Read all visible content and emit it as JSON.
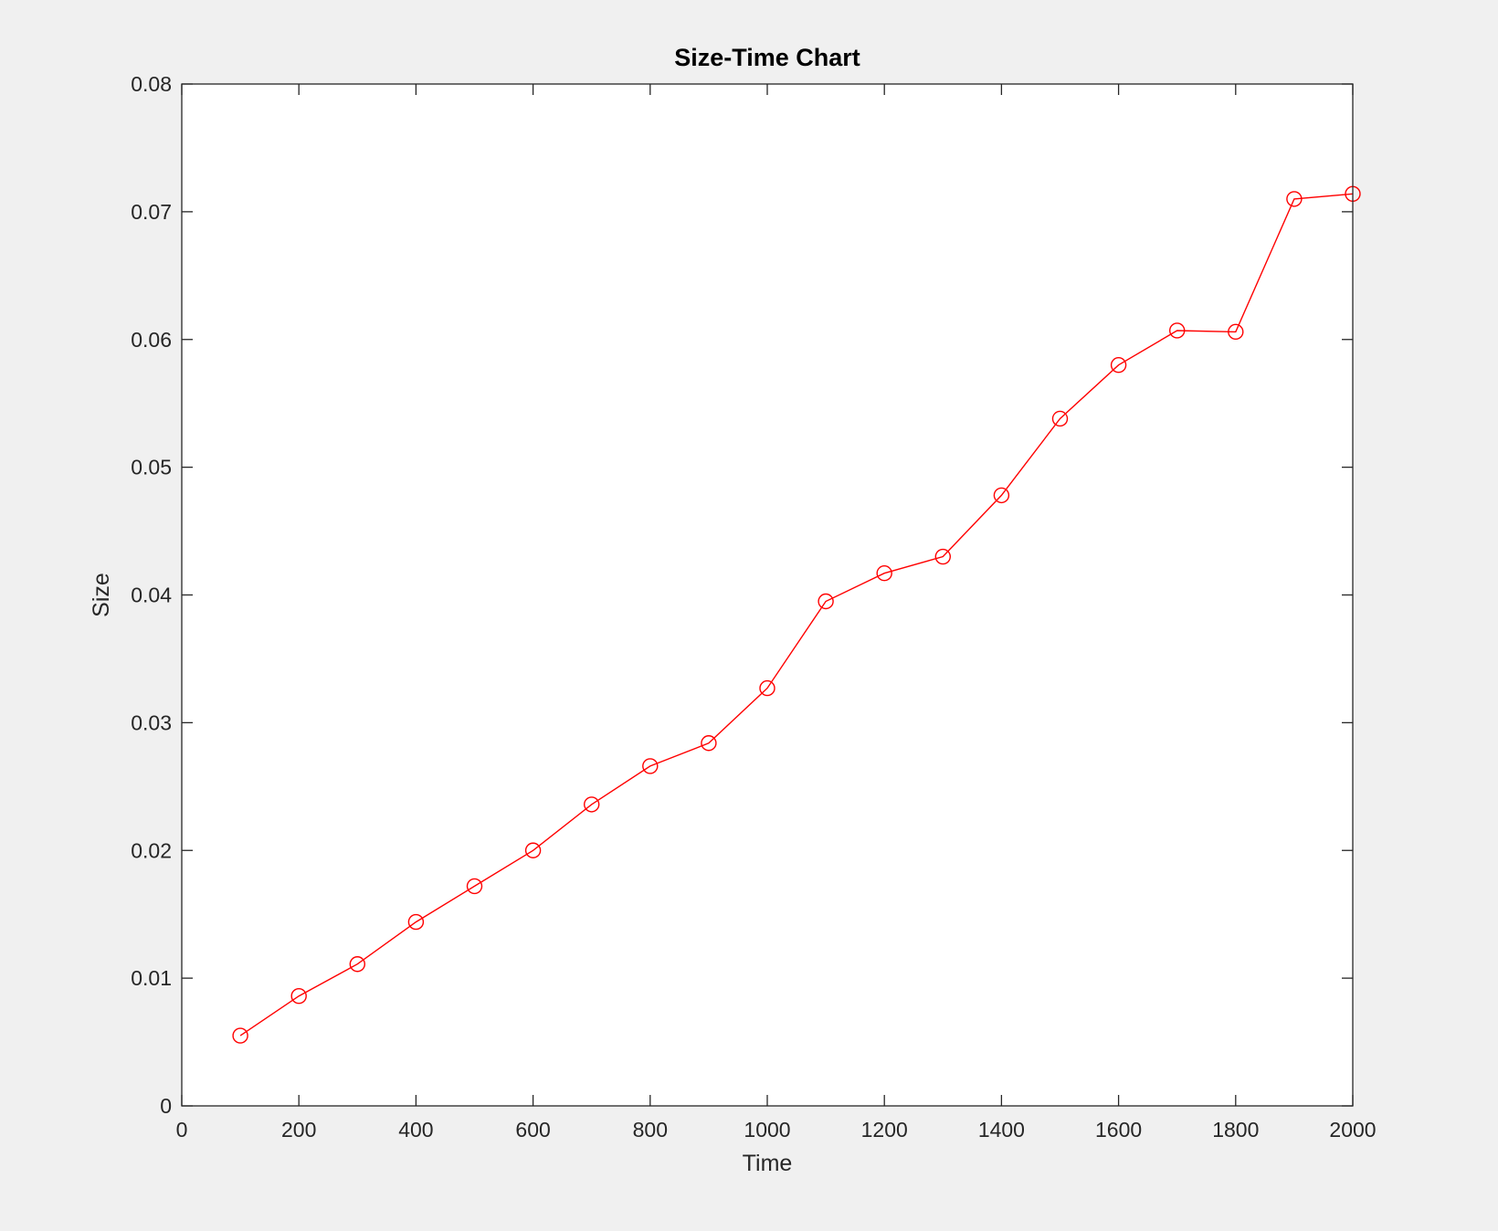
{
  "chart_data": {
    "type": "line",
    "title": "Size-Time Chart",
    "xlabel": "Time",
    "ylabel": "Size",
    "xlim": [
      0,
      2000
    ],
    "ylim": [
      0,
      0.08
    ],
    "x_ticks": [
      "0",
      "200",
      "400",
      "600",
      "800",
      "1000",
      "1200",
      "1400",
      "1600",
      "1800",
      "2000"
    ],
    "y_ticks": [
      "0",
      "0.01",
      "0.02",
      "0.03",
      "0.04",
      "0.05",
      "0.06",
      "0.07",
      "0.08"
    ],
    "grid": false,
    "series": [
      {
        "color": "#ff0000",
        "marker": "circle",
        "x": [
          100,
          200,
          300,
          400,
          500,
          600,
          700,
          800,
          900,
          1000,
          1100,
          1200,
          1300,
          1400,
          1500,
          1600,
          1700,
          1800,
          1900,
          2000
        ],
        "y": [
          0.0055,
          0.0086,
          0.0111,
          0.0144,
          0.0172,
          0.02,
          0.0236,
          0.0266,
          0.0284,
          0.0327,
          0.0395,
          0.0417,
          0.043,
          0.0478,
          0.0538,
          0.058,
          0.0607,
          0.0606,
          0.071,
          0.0714
        ]
      }
    ]
  },
  "colors": {
    "figure_background": "#f0f0f0",
    "axes_background": "#ffffff",
    "axes_color": "#262626",
    "series_color": "#ff0000"
  }
}
